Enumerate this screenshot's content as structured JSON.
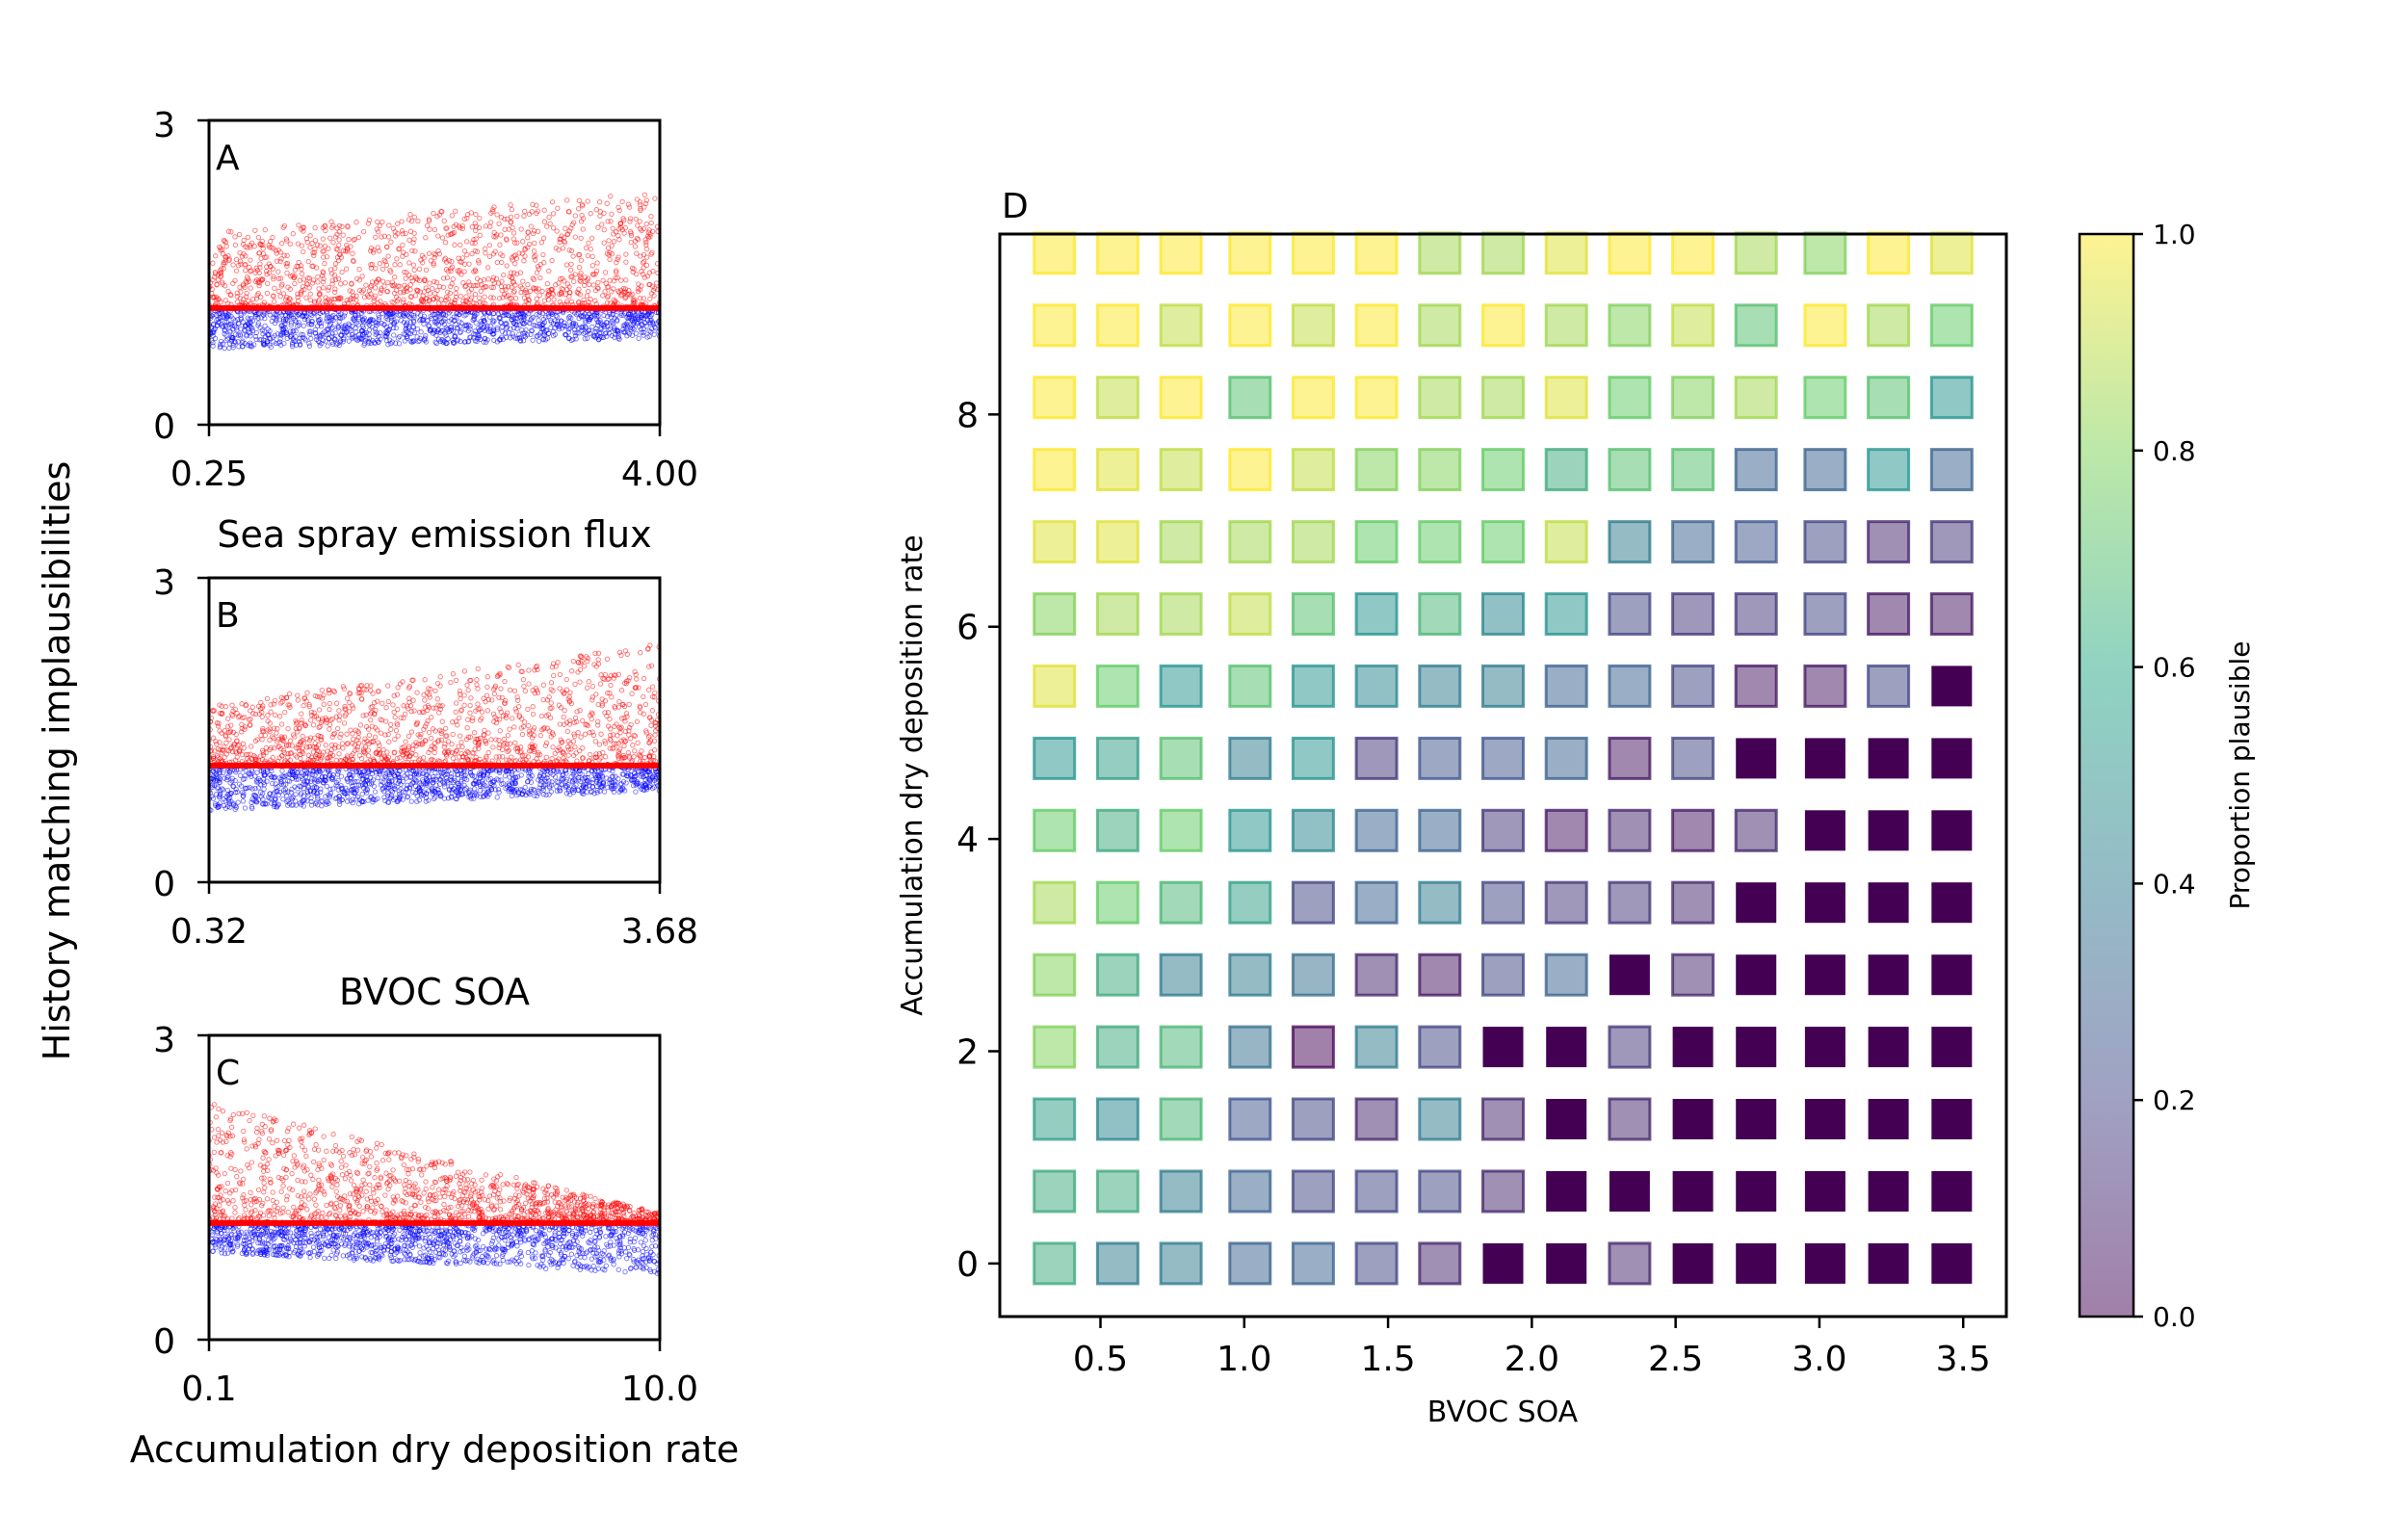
{
  "figure": {
    "shared_ylabel": "History matching implausibilities"
  },
  "chart_data": [
    {
      "panel": "A",
      "type": "scatter",
      "xlabel": "Sea spray emission flux",
      "ylabel": "History matching implausibilities",
      "xlim": [
        0.25,
        4.0
      ],
      "ylim": [
        0,
        3
      ],
      "xticks": [
        "0.25",
        "4.00"
      ],
      "yticks": [
        "0",
        "3"
      ],
      "threshold": 1.15,
      "series": [
        {
          "color": "#ff0000",
          "role": "above threshold",
          "lower": 1.15,
          "upper_start": 1.9,
          "upper_end": 2.3
        },
        {
          "color": "#0000ff",
          "role": "below threshold",
          "lower_start": 0.75,
          "lower_end": 0.85,
          "upper": 1.15
        }
      ]
    },
    {
      "panel": "B",
      "type": "scatter",
      "xlabel": "BVOC SOA",
      "ylabel": "History matching implausibilities",
      "xlim": [
        0.32,
        3.68
      ],
      "ylim": [
        0,
        3
      ],
      "xticks": [
        "0.32",
        "3.68"
      ],
      "yticks": [
        "0",
        "3"
      ],
      "threshold": 1.15,
      "series": [
        {
          "color": "#ff0000",
          "role": "above threshold",
          "lower": 1.15,
          "upper_start": 1.75,
          "upper_end": 2.35
        },
        {
          "color": "#0000ff",
          "role": "below threshold",
          "lower_start": 0.7,
          "lower_end": 0.9,
          "upper": 1.15
        }
      ]
    },
    {
      "panel": "C",
      "type": "scatter",
      "xlabel": "Accumulation dry deposition rate",
      "ylabel": "History matching implausibilities",
      "xlim": [
        0.1,
        10.0
      ],
      "xscale": "log",
      "ylim": [
        0,
        3
      ],
      "xticks": [
        "0.1",
        "10.0"
      ],
      "yticks": [
        "0",
        "3"
      ],
      "threshold": 1.15,
      "series": [
        {
          "color": "#ff0000",
          "role": "above threshold",
          "lower": 1.15,
          "upper_start": 2.35,
          "upper_end": 1.25
        },
        {
          "color": "#0000ff",
          "role": "below threshold",
          "lower_start": 0.85,
          "lower_end": 0.65,
          "upper": 1.15
        }
      ]
    },
    {
      "panel": "D",
      "type": "heatmap",
      "xlabel": "BVOC SOA",
      "ylabel": "Accumulation dry deposition rate",
      "xlim": [
        0.15,
        3.65
      ],
      "ylim": [
        -0.5,
        9.7
      ],
      "xticks": [
        "0.5",
        "1.0",
        "1.5",
        "2.0",
        "2.5",
        "3.0",
        "3.5"
      ],
      "yticks": [
        "0",
        "2",
        "4",
        "6",
        "8"
      ],
      "x": [
        0.34,
        0.56,
        0.78,
        1.02,
        1.24,
        1.46,
        1.68,
        1.9,
        2.12,
        2.34,
        2.56,
        2.78,
        3.02,
        3.24,
        3.46
      ],
      "y": [
        0,
        0.68,
        1.36,
        2.04,
        2.72,
        3.4,
        4.08,
        4.76,
        5.44,
        6.12,
        6.8,
        7.48,
        8.16,
        8.84,
        9.52
      ],
      "values": [
        [
          0.6,
          0.4,
          0.4,
          0.3,
          0.3,
          0.2,
          0.1,
          -1,
          -1,
          0.1,
          -1,
          -1,
          -1,
          -1,
          -1
        ],
        [
          0.6,
          0.6,
          0.4,
          0.3,
          0.2,
          0.2,
          0.2,
          0.1,
          -1,
          -1,
          -1,
          -1,
          -1,
          -1,
          -1
        ],
        [
          0.55,
          0.45,
          0.65,
          0.25,
          0.2,
          0.1,
          0.4,
          0.1,
          -1,
          0.1,
          -1,
          -1,
          -1,
          -1,
          -1
        ],
        [
          0.8,
          0.6,
          0.65,
          0.35,
          0.0,
          0.4,
          0.2,
          -1,
          -1,
          0.15,
          -1,
          -1,
          -1,
          -1,
          -1
        ],
        [
          0.8,
          0.6,
          0.4,
          0.4,
          0.35,
          0.1,
          0.05,
          0.2,
          0.3,
          -1,
          0.1,
          -1,
          -1,
          -1,
          -1
        ],
        [
          0.85,
          0.75,
          0.65,
          0.55,
          0.2,
          0.3,
          0.4,
          0.2,
          0.15,
          0.15,
          0.1,
          -1,
          -1,
          -1,
          -1
        ],
        [
          0.75,
          0.6,
          0.75,
          0.5,
          0.45,
          0.3,
          0.3,
          0.15,
          0.05,
          0.1,
          0.05,
          0.1,
          -1,
          -1,
          -1
        ],
        [
          0.5,
          0.55,
          0.7,
          0.4,
          0.5,
          0.15,
          0.25,
          0.25,
          0.3,
          0.05,
          0.2,
          -1,
          -1,
          -1,
          -1
        ],
        [
          0.95,
          0.75,
          0.5,
          0.7,
          0.5,
          0.45,
          0.4,
          0.4,
          0.3,
          0.3,
          0.2,
          0.05,
          0.05,
          0.2,
          -1
        ],
        [
          0.8,
          0.85,
          0.85,
          0.9,
          0.7,
          0.5,
          0.65,
          0.45,
          0.5,
          0.2,
          0.15,
          0.15,
          0.2,
          0.05,
          0.05
        ],
        [
          0.95,
          0.95,
          0.85,
          0.85,
          0.85,
          0.75,
          0.75,
          0.75,
          0.9,
          0.4,
          0.3,
          0.25,
          0.2,
          0.1,
          0.15
        ],
        [
          1.0,
          0.95,
          0.9,
          1.0,
          0.9,
          0.8,
          0.8,
          0.75,
          0.6,
          0.7,
          0.7,
          0.3,
          0.3,
          0.5,
          0.3
        ],
        [
          1.0,
          0.9,
          1.0,
          0.7,
          1.0,
          1.0,
          0.85,
          0.85,
          0.95,
          0.75,
          0.8,
          0.85,
          0.75,
          0.7,
          0.5
        ],
        [
          1.0,
          1.0,
          0.9,
          1.0,
          0.9,
          1.0,
          0.85,
          1.0,
          0.85,
          0.8,
          0.9,
          0.7,
          1.0,
          0.85,
          0.75
        ],
        [
          1.0,
          1.0,
          1.0,
          1.0,
          1.0,
          1.0,
          0.85,
          0.85,
          0.95,
          1.0,
          1.0,
          0.85,
          0.8,
          1.0,
          0.95
        ]
      ],
      "excluded_color": "#440154",
      "colormap": "viridis",
      "alpha": 0.5
    }
  ],
  "colorbar": {
    "label": "Proportion plausible",
    "ticks": [
      "0.0",
      "0.2",
      "0.4",
      "0.6",
      "0.8",
      "1.0"
    ],
    "range": [
      0,
      1
    ]
  }
}
